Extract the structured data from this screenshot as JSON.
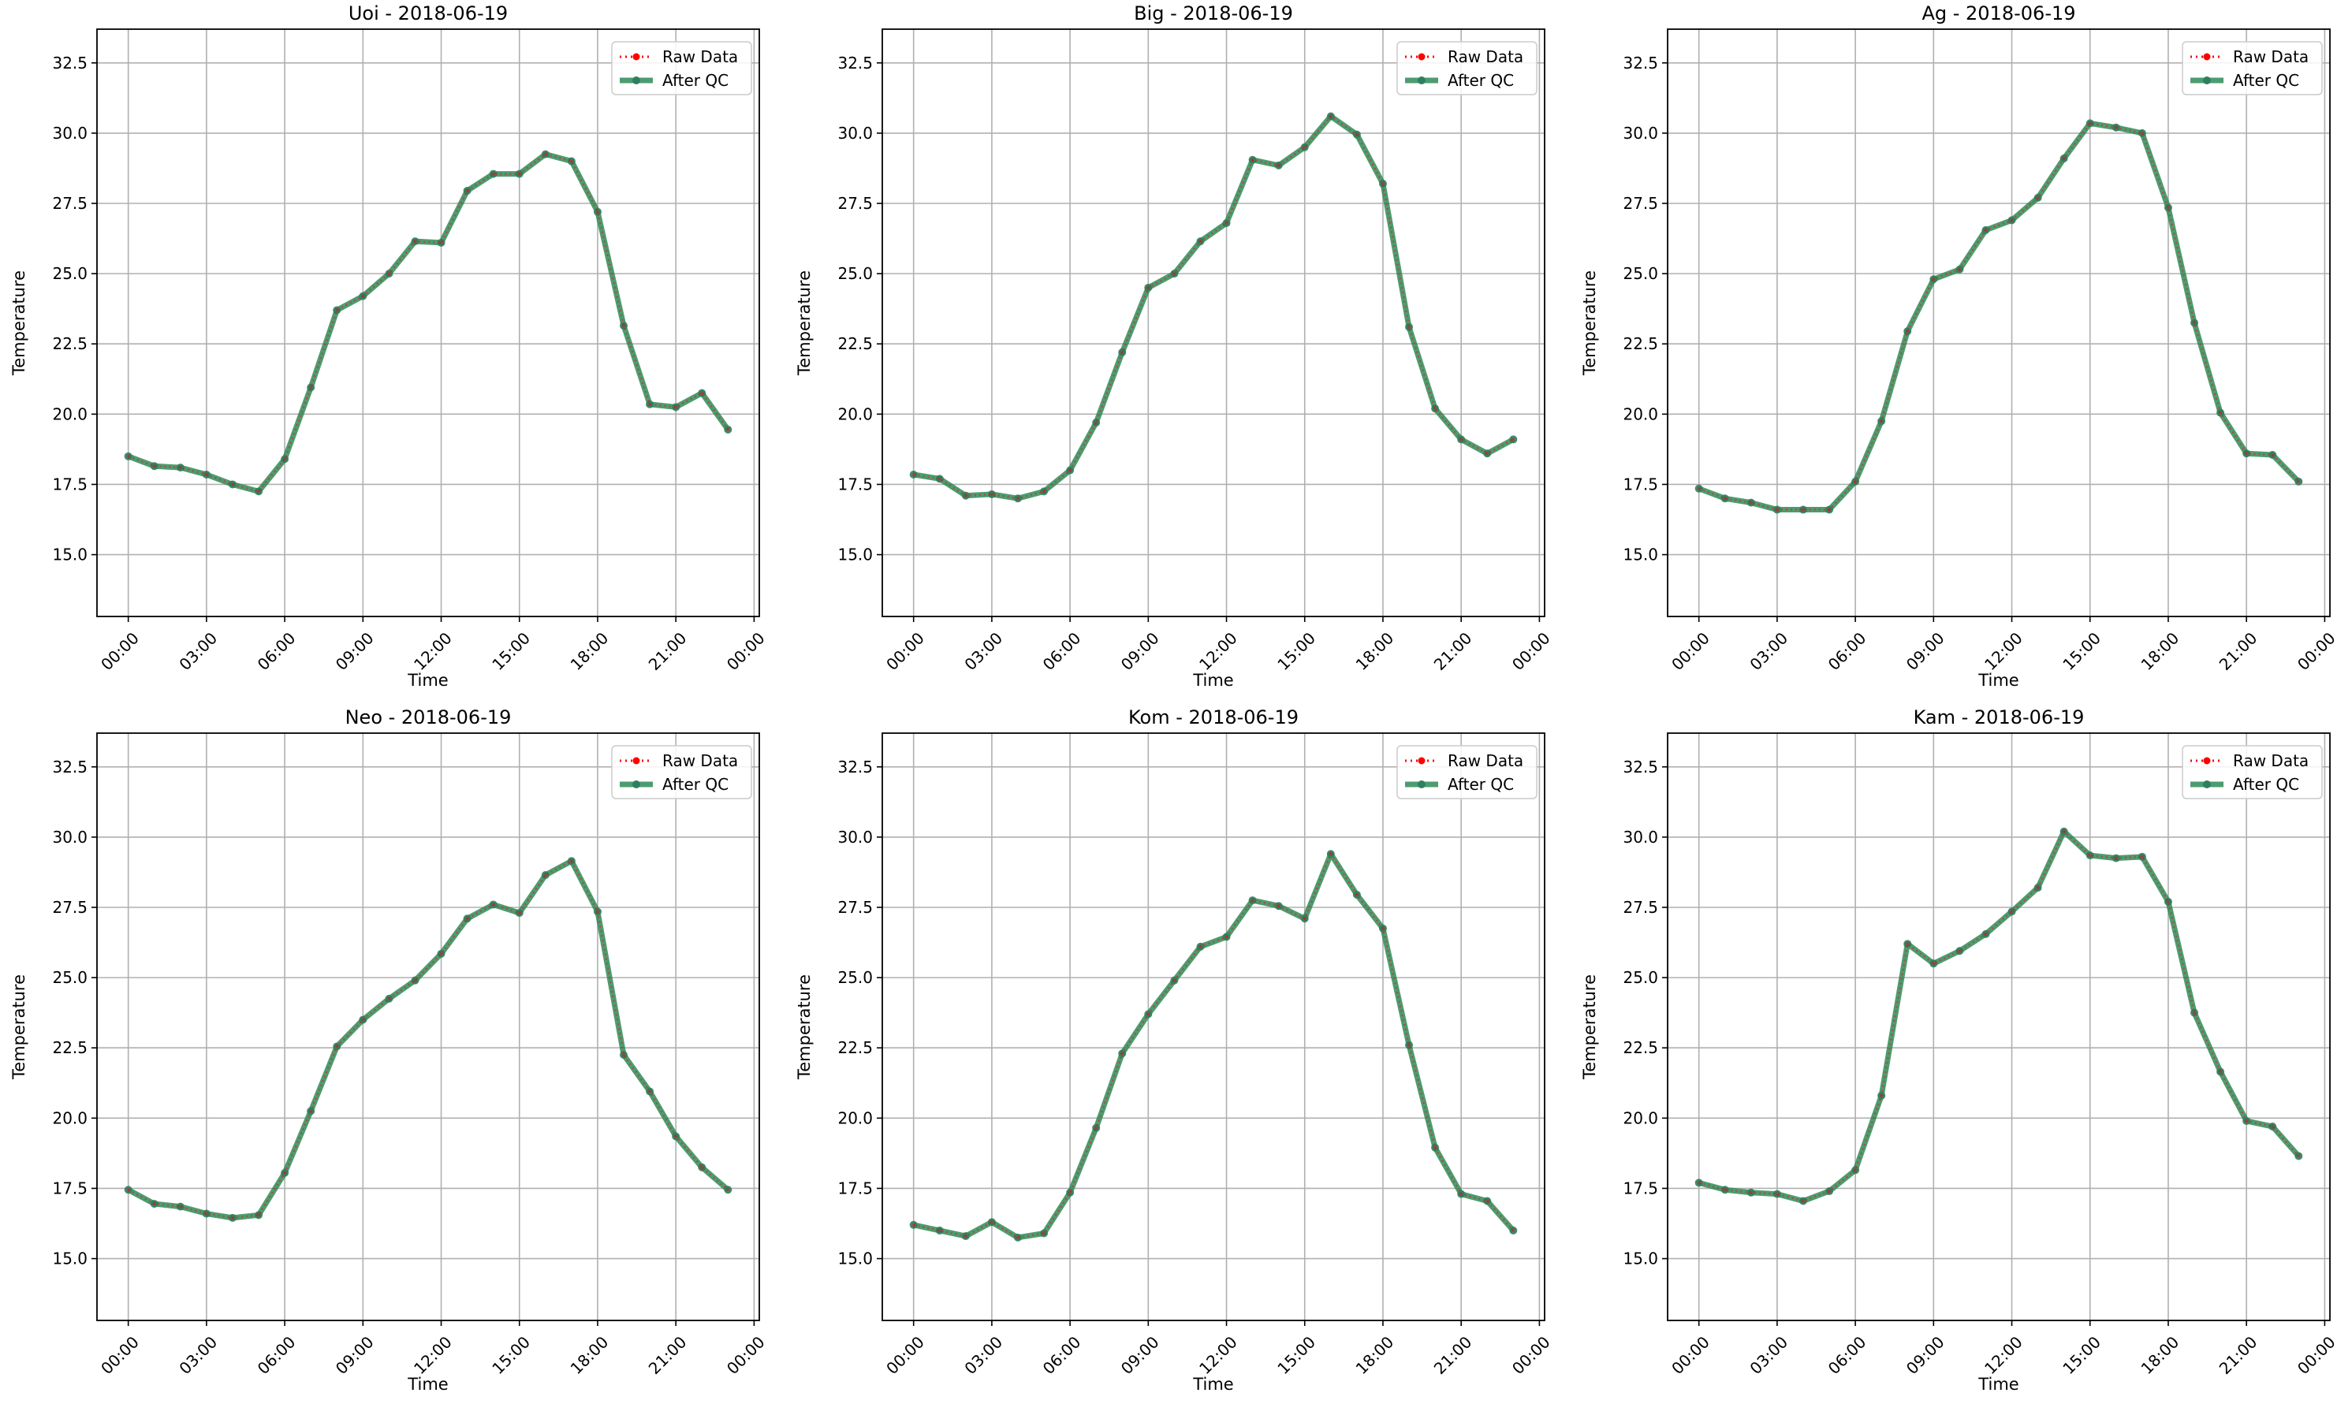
{
  "legend_labels": {
    "raw": "Raw Data",
    "qc": "After QC"
  },
  "colors": {
    "raw": "#ff0000",
    "qc": "#2e8b57",
    "qc_marker": "#2e7f60",
    "grid": "#b0b0b0"
  },
  "chart_data": [
    {
      "type": "line",
      "title": "Uoi - 2018-06-19",
      "xlabel": "Time",
      "ylabel": "Temperature",
      "x": [
        "00:00",
        "01:00",
        "02:00",
        "03:00",
        "04:00",
        "05:00",
        "06:00",
        "07:00",
        "08:00",
        "09:00",
        "10:00",
        "11:00",
        "12:00",
        "13:00",
        "14:00",
        "15:00",
        "16:00",
        "17:00",
        "18:00",
        "19:00",
        "20:00",
        "21:00",
        "22:00",
        "23:00"
      ],
      "x_ticks": [
        "00:00",
        "03:00",
        "06:00",
        "09:00",
        "12:00",
        "15:00",
        "18:00",
        "21:00",
        "00:00"
      ],
      "y_ticks": [
        "15.0",
        "17.5",
        "20.0",
        "22.5",
        "25.0",
        "27.5",
        "30.0",
        "32.5"
      ],
      "ylim": [
        12.8,
        33.7
      ],
      "grid": true,
      "legend": "top-right",
      "series": [
        {
          "name": "Raw Data",
          "values": [
            18.5,
            18.15,
            18.1,
            17.85,
            17.5,
            17.25,
            18.4,
            20.95,
            23.7,
            24.2,
            25.0,
            26.15,
            26.1,
            27.95,
            28.55,
            28.55,
            29.25,
            29.0,
            27.2,
            23.15,
            20.35,
            20.25,
            20.75,
            19.45
          ]
        },
        {
          "name": "After QC",
          "values": [
            18.5,
            18.15,
            18.1,
            17.85,
            17.5,
            17.25,
            18.4,
            20.95,
            23.7,
            24.2,
            25.0,
            26.15,
            26.1,
            27.95,
            28.55,
            28.55,
            29.25,
            29.0,
            27.2,
            23.15,
            20.35,
            20.25,
            20.75,
            19.45
          ]
        }
      ]
    },
    {
      "type": "line",
      "title": "Big - 2018-06-19",
      "xlabel": "Time",
      "ylabel": "Temperature",
      "x": [
        "00:00",
        "01:00",
        "02:00",
        "03:00",
        "04:00",
        "05:00",
        "06:00",
        "07:00",
        "08:00",
        "09:00",
        "10:00",
        "11:00",
        "12:00",
        "13:00",
        "14:00",
        "15:00",
        "16:00",
        "17:00",
        "18:00",
        "19:00",
        "20:00",
        "21:00",
        "22:00",
        "23:00"
      ],
      "x_ticks": [
        "00:00",
        "03:00",
        "06:00",
        "09:00",
        "12:00",
        "15:00",
        "18:00",
        "21:00",
        "00:00"
      ],
      "y_ticks": [
        "15.0",
        "17.5",
        "20.0",
        "22.5",
        "25.0",
        "27.5",
        "30.0",
        "32.5"
      ],
      "ylim": [
        12.8,
        33.7
      ],
      "grid": true,
      "legend": "top-right",
      "series": [
        {
          "name": "Raw Data",
          "values": [
            17.85,
            17.7,
            17.1,
            17.15,
            17.0,
            17.25,
            18.0,
            19.7,
            22.2,
            24.5,
            25.0,
            26.15,
            26.8,
            29.05,
            28.85,
            29.5,
            30.6,
            29.95,
            28.2,
            23.1,
            20.2,
            19.1,
            18.6,
            19.1
          ]
        },
        {
          "name": "After QC",
          "values": [
            17.85,
            17.7,
            17.1,
            17.15,
            17.0,
            17.25,
            18.0,
            19.7,
            22.2,
            24.5,
            25.0,
            26.15,
            26.8,
            29.05,
            28.85,
            29.5,
            30.6,
            29.95,
            28.2,
            23.1,
            20.2,
            19.1,
            18.6,
            19.1
          ]
        }
      ]
    },
    {
      "type": "line",
      "title": "Ag - 2018-06-19",
      "xlabel": "Time",
      "ylabel": "Temperature",
      "x": [
        "00:00",
        "01:00",
        "02:00",
        "03:00",
        "04:00",
        "05:00",
        "06:00",
        "07:00",
        "08:00",
        "09:00",
        "10:00",
        "11:00",
        "12:00",
        "13:00",
        "14:00",
        "15:00",
        "16:00",
        "17:00",
        "18:00",
        "19:00",
        "20:00",
        "21:00",
        "22:00",
        "23:00"
      ],
      "x_ticks": [
        "00:00",
        "03:00",
        "06:00",
        "09:00",
        "12:00",
        "15:00",
        "18:00",
        "21:00",
        "00:00"
      ],
      "y_ticks": [
        "15.0",
        "17.5",
        "20.0",
        "22.5",
        "25.0",
        "27.5",
        "30.0",
        "32.5"
      ],
      "ylim": [
        12.8,
        33.7
      ],
      "grid": true,
      "legend": "top-right",
      "series": [
        {
          "name": "Raw Data",
          "values": [
            17.35,
            17.0,
            16.85,
            16.6,
            16.6,
            16.6,
            17.6,
            19.75,
            22.95,
            24.8,
            25.15,
            26.55,
            26.9,
            27.7,
            29.1,
            30.35,
            30.2,
            30.0,
            27.35,
            23.25,
            20.05,
            18.6,
            18.55,
            17.6
          ]
        },
        {
          "name": "After QC",
          "values": [
            17.35,
            17.0,
            16.85,
            16.6,
            16.6,
            16.6,
            17.6,
            19.75,
            22.95,
            24.8,
            25.15,
            26.55,
            26.9,
            27.7,
            29.1,
            30.35,
            30.2,
            30.0,
            27.35,
            23.25,
            20.05,
            18.6,
            18.55,
            17.6
          ]
        }
      ]
    },
    {
      "type": "line",
      "title": "Neo - 2018-06-19",
      "xlabel": "Time",
      "ylabel": "Temperature",
      "x": [
        "00:00",
        "01:00",
        "02:00",
        "03:00",
        "04:00",
        "05:00",
        "06:00",
        "07:00",
        "08:00",
        "09:00",
        "10:00",
        "11:00",
        "12:00",
        "13:00",
        "14:00",
        "15:00",
        "16:00",
        "17:00",
        "18:00",
        "19:00",
        "20:00",
        "21:00",
        "22:00",
        "23:00"
      ],
      "x_ticks": [
        "00:00",
        "03:00",
        "06:00",
        "09:00",
        "12:00",
        "15:00",
        "18:00",
        "21:00",
        "00:00"
      ],
      "y_ticks": [
        "15.0",
        "17.5",
        "20.0",
        "22.5",
        "25.0",
        "27.5",
        "30.0",
        "32.5"
      ],
      "ylim": [
        12.8,
        33.7
      ],
      "grid": true,
      "legend": "top-right",
      "series": [
        {
          "name": "Raw Data",
          "values": [
            17.45,
            16.95,
            16.85,
            16.6,
            16.45,
            16.55,
            18.05,
            20.25,
            22.55,
            23.5,
            24.25,
            24.9,
            25.85,
            27.1,
            27.6,
            27.3,
            28.65,
            29.15,
            27.35,
            22.25,
            20.95,
            19.35,
            18.25,
            17.45
          ]
        },
        {
          "name": "After QC",
          "values": [
            17.45,
            16.95,
            16.85,
            16.6,
            16.45,
            16.55,
            18.05,
            20.25,
            22.55,
            23.5,
            24.25,
            24.9,
            25.85,
            27.1,
            27.6,
            27.3,
            28.65,
            29.15,
            27.35,
            22.25,
            20.95,
            19.35,
            18.25,
            17.45
          ]
        }
      ]
    },
    {
      "type": "line",
      "title": "Kom - 2018-06-19",
      "xlabel": "Time",
      "ylabel": "Temperature",
      "x": [
        "00:00",
        "01:00",
        "02:00",
        "03:00",
        "04:00",
        "05:00",
        "06:00",
        "07:00",
        "08:00",
        "09:00",
        "10:00",
        "11:00",
        "12:00",
        "13:00",
        "14:00",
        "15:00",
        "16:00",
        "17:00",
        "18:00",
        "19:00",
        "20:00",
        "21:00",
        "22:00",
        "23:00"
      ],
      "x_ticks": [
        "00:00",
        "03:00",
        "06:00",
        "09:00",
        "12:00",
        "15:00",
        "18:00",
        "21:00",
        "00:00"
      ],
      "y_ticks": [
        "15.0",
        "17.5",
        "20.0",
        "22.5",
        "25.0",
        "27.5",
        "30.0",
        "32.5"
      ],
      "ylim": [
        12.8,
        33.7
      ],
      "grid": true,
      "legend": "top-right",
      "series": [
        {
          "name": "Raw Data",
          "values": [
            16.2,
            16.0,
            15.8,
            16.3,
            15.75,
            15.9,
            17.35,
            19.65,
            22.3,
            23.7,
            24.9,
            26.1,
            26.45,
            27.75,
            27.55,
            27.1,
            29.4,
            27.95,
            26.75,
            22.6,
            18.95,
            17.3,
            17.05,
            16.0
          ]
        },
        {
          "name": "After QC",
          "values": [
            16.2,
            16.0,
            15.8,
            16.3,
            15.75,
            15.9,
            17.35,
            19.65,
            22.3,
            23.7,
            24.9,
            26.1,
            26.45,
            27.75,
            27.55,
            27.1,
            29.4,
            27.95,
            26.75,
            22.6,
            18.95,
            17.3,
            17.05,
            16.0
          ]
        }
      ]
    },
    {
      "type": "line",
      "title": "Kam - 2018-06-19",
      "xlabel": "Time",
      "ylabel": "Temperature",
      "x": [
        "00:00",
        "01:00",
        "02:00",
        "03:00",
        "04:00",
        "05:00",
        "06:00",
        "07:00",
        "08:00",
        "09:00",
        "10:00",
        "11:00",
        "12:00",
        "13:00",
        "14:00",
        "15:00",
        "16:00",
        "17:00",
        "18:00",
        "19:00",
        "20:00",
        "21:00",
        "22:00",
        "23:00"
      ],
      "x_ticks": [
        "00:00",
        "03:00",
        "06:00",
        "09:00",
        "12:00",
        "15:00",
        "18:00",
        "21:00",
        "00:00"
      ],
      "y_ticks": [
        "15.0",
        "17.5",
        "20.0",
        "22.5",
        "25.0",
        "27.5",
        "30.0",
        "32.5"
      ],
      "ylim": [
        12.8,
        33.7
      ],
      "grid": true,
      "legend": "top-right",
      "series": [
        {
          "name": "Raw Data",
          "values": [
            17.7,
            17.45,
            17.35,
            17.3,
            17.05,
            17.4,
            18.15,
            20.8,
            26.2,
            25.5,
            25.95,
            26.55,
            27.35,
            28.2,
            30.2,
            29.35,
            29.25,
            29.3,
            27.7,
            23.75,
            21.65,
            19.9,
            19.7,
            18.65
          ]
        },
        {
          "name": "After QC",
          "values": [
            17.7,
            17.45,
            17.35,
            17.3,
            17.05,
            17.4,
            18.15,
            20.8,
            26.2,
            25.5,
            25.95,
            26.55,
            27.35,
            28.2,
            30.2,
            29.35,
            29.25,
            29.3,
            27.7,
            23.75,
            21.65,
            19.9,
            19.7,
            18.65
          ]
        }
      ]
    }
  ]
}
